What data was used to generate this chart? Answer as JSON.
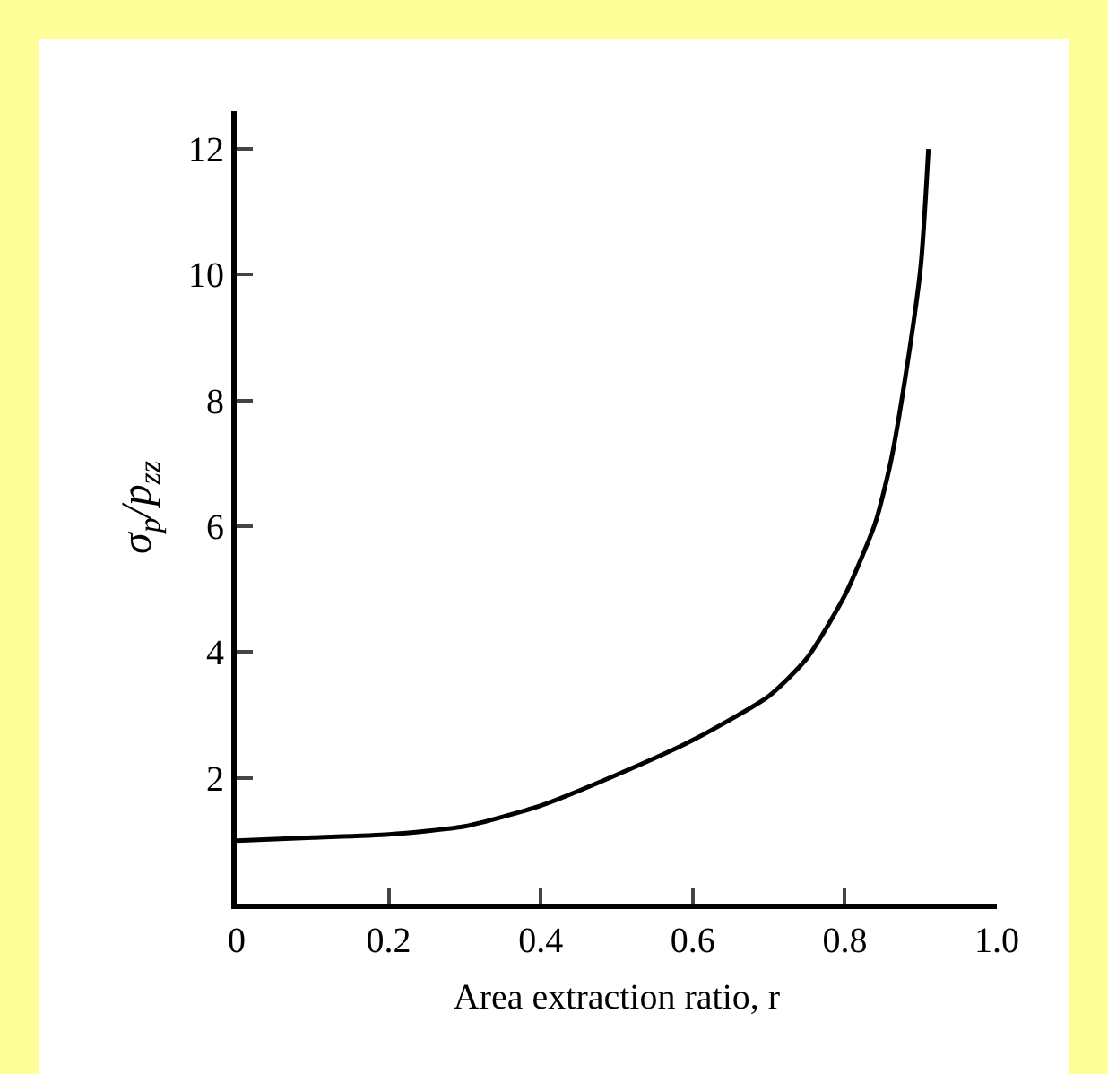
{
  "chart_data": {
    "type": "line",
    "xlabel": "Area extraction ratio, r",
    "ylabel": "σ$_{p}$/p$_{zz}$",
    "x": [
      0,
      0.1,
      0.2,
      0.3,
      0.4,
      0.5,
      0.6,
      0.7,
      0.75,
      0.8,
      0.84,
      0.86,
      0.88,
      0.9,
      0.91
    ],
    "series": [
      {
        "color": "#000000",
        "values": [
          1.0,
          1.05,
          1.1,
          1.23,
          1.56,
          2.05,
          2.6,
          3.3,
          3.9,
          4.9,
          6.05,
          7.0,
          8.4,
          10.15,
          12.0
        ]
      }
    ],
    "xlim": [
      0,
      1.0
    ],
    "ylim": [
      0,
      12.6
    ],
    "xticks": [
      0,
      0.2,
      0.4,
      0.6,
      0.8,
      {
        "value": 1,
        "label": "1.0"
      }
    ],
    "yticks": [
      2,
      4,
      6,
      8,
      10,
      12
    ],
    "grid": false,
    "marker": "none",
    "line_style": "solid"
  }
}
